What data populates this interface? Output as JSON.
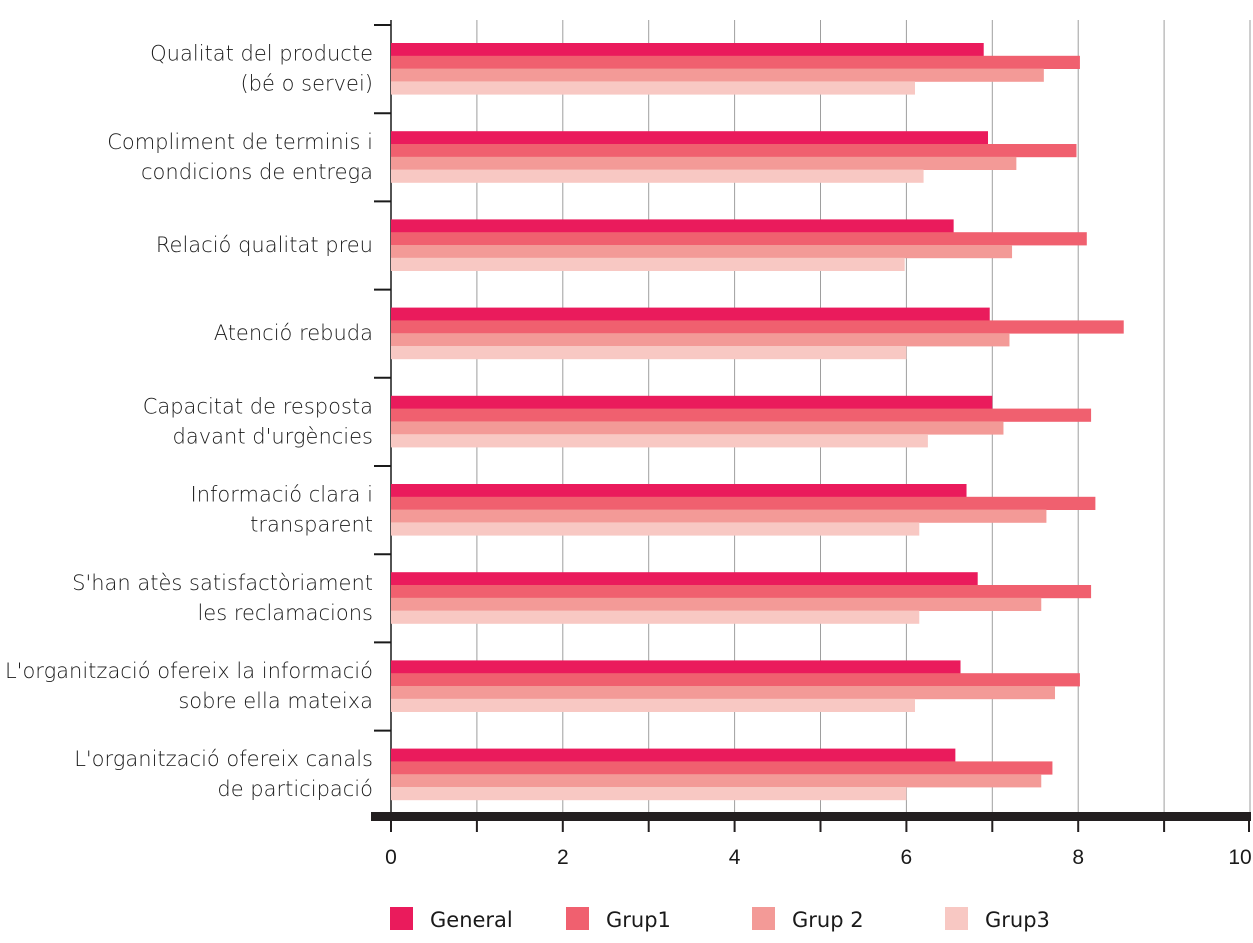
{
  "chart_data": {
    "type": "bar",
    "orientation": "horizontal",
    "categories": [
      [
        "Qualitat del producte",
        "(bé o servei)"
      ],
      [
        "Compliment de terminis i",
        "condicions de entrega"
      ],
      [
        "Relació qualitat preu"
      ],
      [
        "Atenció rebuda"
      ],
      [
        "Capacitat de resposta",
        "davant d'urgències"
      ],
      [
        "Informació clara i",
        "transparent"
      ],
      [
        "S'han atès satisfactòriament",
        "les reclamacions"
      ],
      [
        "L'organització ofereix la informació",
        "sobre ella mateixa"
      ],
      [
        "L'organització ofereix canals",
        "de participació"
      ]
    ],
    "series": [
      {
        "name": "General",
        "color": "#ea1b5c",
        "values": [
          6.9,
          6.95,
          6.55,
          6.97,
          7.0,
          6.7,
          6.83,
          6.63,
          6.57
        ]
      },
      {
        "name": "Grup1",
        "color": "#f0606f",
        "values": [
          8.02,
          7.98,
          8.1,
          8.53,
          8.15,
          8.2,
          8.15,
          8.02,
          7.7
        ]
      },
      {
        "name": "Grup 2",
        "color": "#f39a97",
        "values": [
          7.6,
          7.28,
          7.23,
          7.2,
          7.13,
          7.63,
          7.57,
          7.73,
          7.57
        ]
      },
      {
        "name": "Grup3",
        "color": "#f8c8c3",
        "values": [
          6.1,
          6.2,
          5.98,
          6.0,
          6.25,
          6.15,
          6.15,
          6.1,
          6.0
        ]
      }
    ],
    "xlim": [
      0,
      10
    ],
    "xticks": [
      0,
      2,
      4,
      6,
      8,
      10
    ],
    "grid": "vertical",
    "legend": "bottom",
    "title": "",
    "xlabel": "",
    "ylabel": ""
  }
}
